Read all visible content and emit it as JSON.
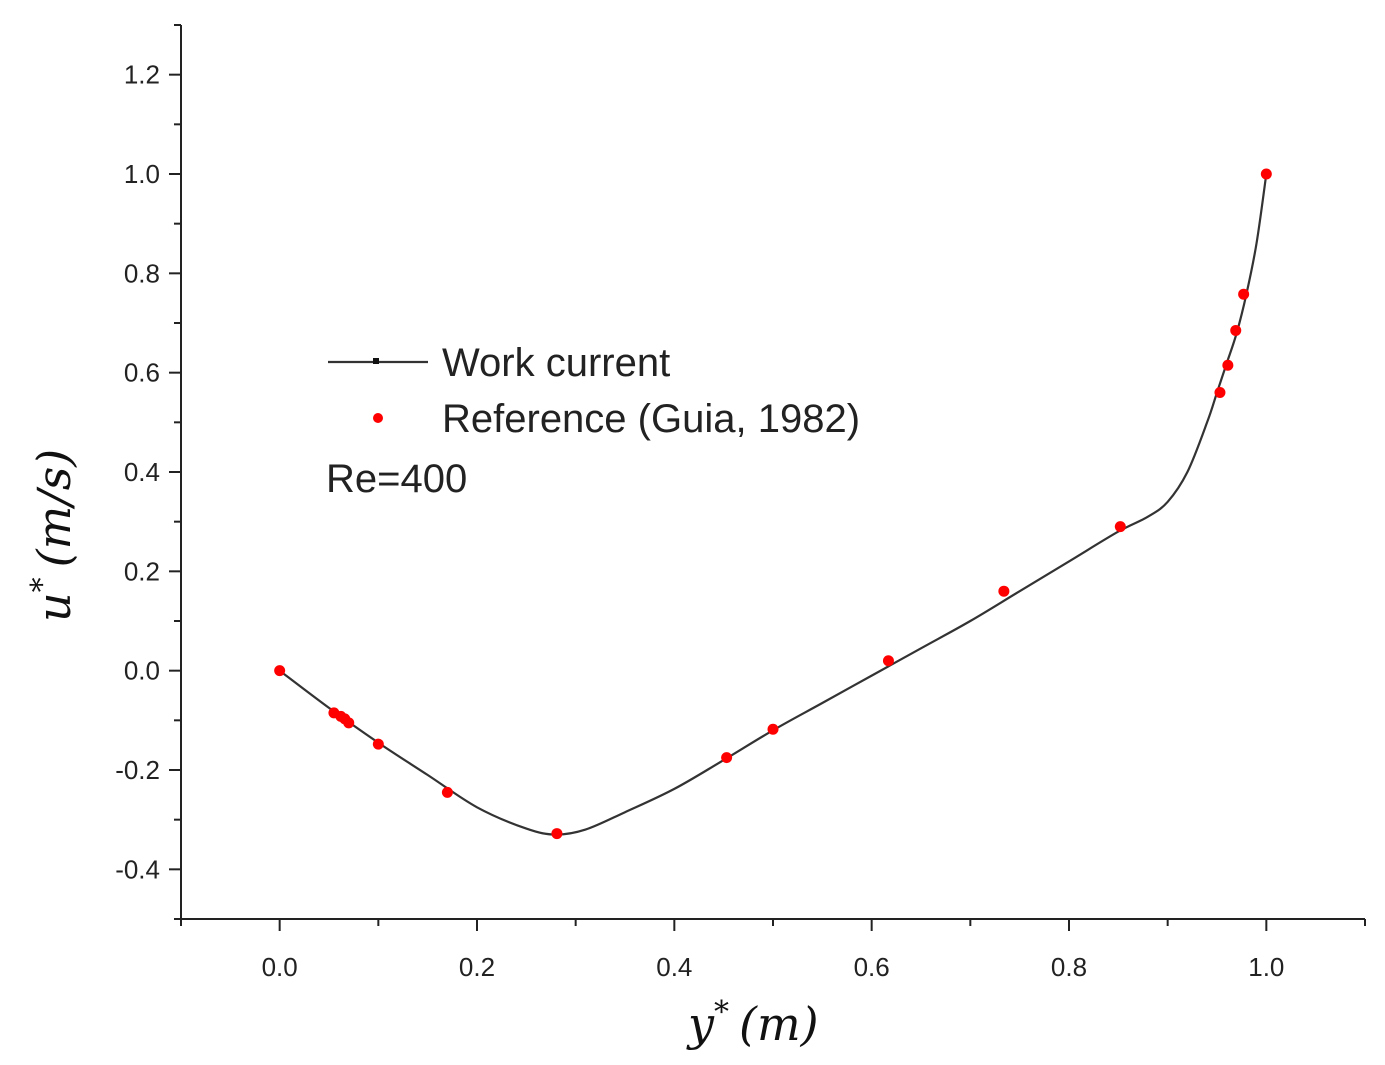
{
  "chart_data": {
    "type": "line",
    "title": "",
    "xlabel": {
      "var": "y",
      "sup": "*",
      "unit": "(m)"
    },
    "ylabel": {
      "var": "u",
      "sup": "*",
      "unit": "(m/s)"
    },
    "xlim": [
      -0.1,
      1.1
    ],
    "ylim": [
      -0.5,
      1.3
    ],
    "xticks": [
      0.0,
      0.2,
      0.4,
      0.6,
      0.8,
      1.0
    ],
    "xtick_labels": [
      "0.0",
      "0.2",
      "0.4",
      "0.6",
      "0.8",
      "1.0"
    ],
    "yticks": [
      -0.4,
      -0.2,
      0.0,
      0.2,
      0.4,
      0.6,
      0.8,
      1.0,
      1.2
    ],
    "ytick_labels": [
      "-0.4",
      "-0.2",
      "0.0",
      "0.2",
      "0.4",
      "0.6",
      "0.8",
      "1.0",
      "1.2"
    ],
    "grid": false,
    "legend_position": "upper-left",
    "annotation": "Re=400",
    "series": [
      {
        "name": "Work current",
        "style": "line",
        "color": "#333333",
        "x": [
          0.0,
          0.05,
          0.1,
          0.15,
          0.2,
          0.25,
          0.28,
          0.31,
          0.35,
          0.4,
          0.45,
          0.5,
          0.55,
          0.6,
          0.65,
          0.7,
          0.75,
          0.8,
          0.85,
          0.88,
          0.9,
          0.92,
          0.94,
          0.95,
          0.96,
          0.97,
          0.98,
          0.99,
          1.0
        ],
        "y": [
          0.0,
          -0.075,
          -0.145,
          -0.21,
          -0.275,
          -0.318,
          -0.33,
          -0.32,
          -0.285,
          -0.238,
          -0.18,
          -0.12,
          -0.065,
          -0.01,
          0.045,
          0.1,
          0.16,
          0.22,
          0.28,
          0.31,
          0.34,
          0.4,
          0.5,
          0.56,
          0.62,
          0.68,
          0.76,
          0.86,
          1.0
        ]
      },
      {
        "name": "Reference (Guia, 1982)",
        "style": "markers",
        "color": "#ff0000",
        "x": [
          0.0,
          0.055,
          0.062,
          0.066,
          0.07,
          0.1,
          0.17,
          0.281,
          0.453,
          0.5,
          0.617,
          0.734,
          0.852,
          0.953,
          0.961,
          0.969,
          0.977,
          1.0
        ],
        "y": [
          0.0,
          -0.085,
          -0.092,
          -0.097,
          -0.105,
          -0.148,
          -0.245,
          -0.328,
          -0.175,
          -0.118,
          0.02,
          0.16,
          0.29,
          0.56,
          0.615,
          0.685,
          0.758,
          1.0
        ]
      }
    ]
  }
}
